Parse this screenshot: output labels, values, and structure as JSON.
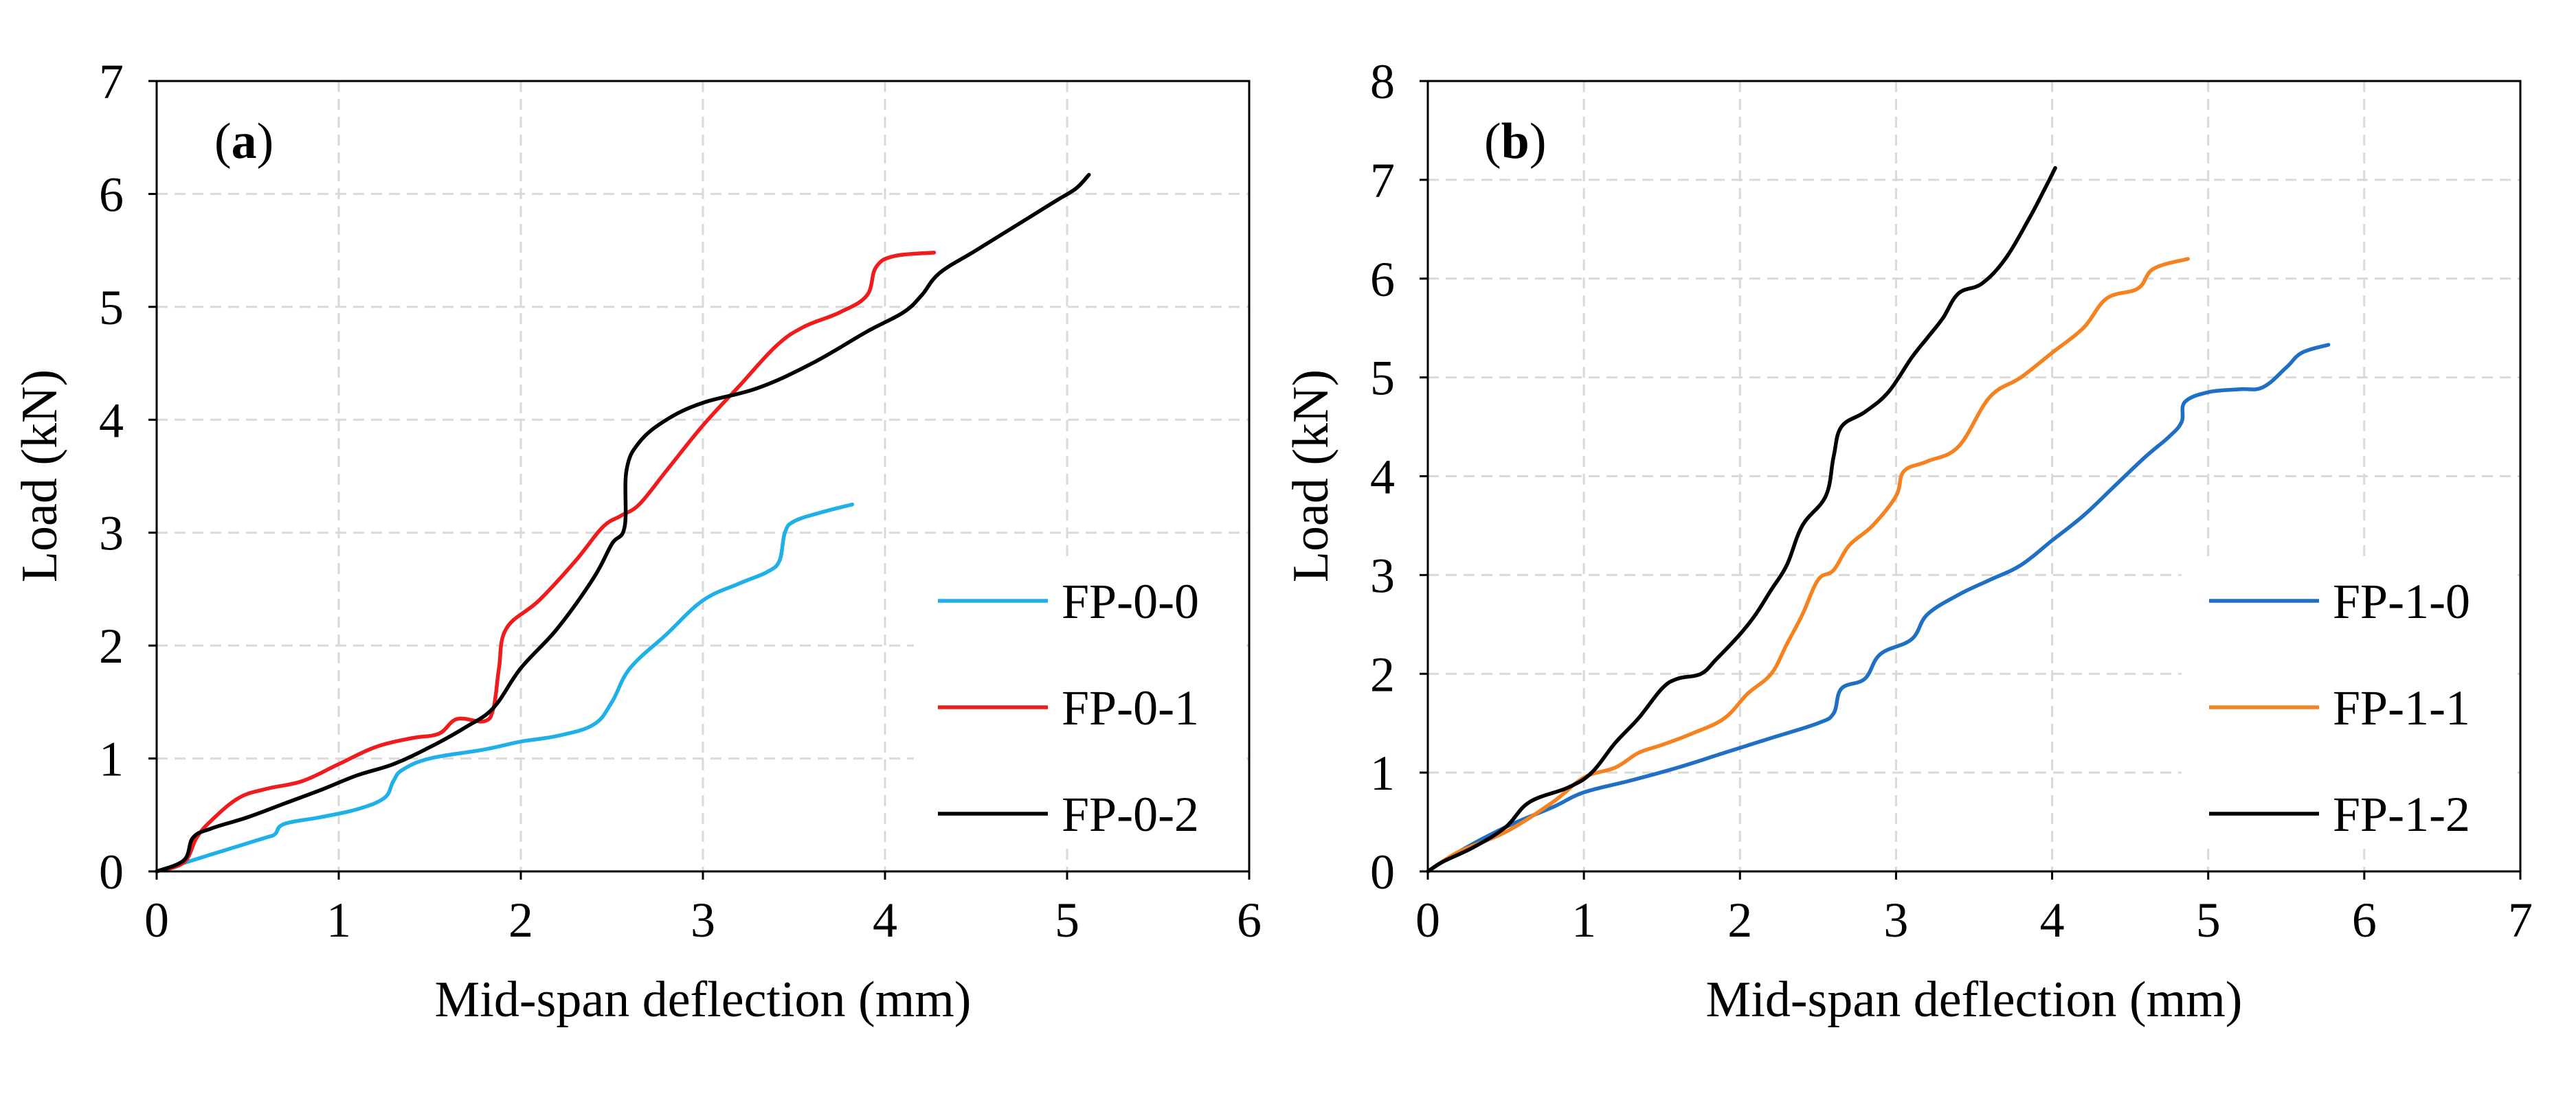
{
  "chart_data": [
    {
      "type": "line",
      "panel_label_letter": "a",
      "xlabel": "Mid-span deflection (mm)",
      "ylabel": "Load (kN)",
      "xlim": [
        0,
        6
      ],
      "ylim": [
        0,
        7
      ],
      "xticks": [
        "0",
        "1",
        "2",
        "3",
        "4",
        "5",
        "6"
      ],
      "yticks": [
        "0",
        "1",
        "2",
        "3",
        "4",
        "5",
        "6",
        "7"
      ],
      "grid": true,
      "legend_position": "lower-right",
      "series": [
        {
          "name": "FP-0-0",
          "color": "#1fb0e8",
          "points": [
            [
              0,
              0
            ],
            [
              0.2,
              0.1
            ],
            [
              0.4,
              0.2
            ],
            [
              0.6,
              0.3
            ],
            [
              0.65,
              0.33
            ],
            [
              0.7,
              0.42
            ],
            [
              0.9,
              0.48
            ],
            [
              1.1,
              0.55
            ],
            [
              1.25,
              0.65
            ],
            [
              1.3,
              0.8
            ],
            [
              1.35,
              0.9
            ],
            [
              1.5,
              1.0
            ],
            [
              1.8,
              1.08
            ],
            [
              2.0,
              1.15
            ],
            [
              2.2,
              1.2
            ],
            [
              2.4,
              1.3
            ],
            [
              2.5,
              1.5
            ],
            [
              2.6,
              1.8
            ],
            [
              2.8,
              2.1
            ],
            [
              3.0,
              2.4
            ],
            [
              3.2,
              2.55
            ],
            [
              3.35,
              2.65
            ],
            [
              3.42,
              2.75
            ],
            [
              3.45,
              3.0
            ],
            [
              3.5,
              3.1
            ],
            [
              3.65,
              3.18
            ],
            [
              3.82,
              3.25
            ]
          ]
        },
        {
          "name": "FP-0-1",
          "color": "#ee1c1c",
          "points": [
            [
              0,
              0
            ],
            [
              0.15,
              0.08
            ],
            [
              0.22,
              0.3
            ],
            [
              0.3,
              0.45
            ],
            [
              0.45,
              0.65
            ],
            [
              0.6,
              0.73
            ],
            [
              0.8,
              0.8
            ],
            [
              1.0,
              0.95
            ],
            [
              1.2,
              1.1
            ],
            [
              1.4,
              1.18
            ],
            [
              1.55,
              1.22
            ],
            [
              1.65,
              1.35
            ],
            [
              1.8,
              1.33
            ],
            [
              1.85,
              1.45
            ],
            [
              1.88,
              1.8
            ],
            [
              1.92,
              2.15
            ],
            [
              2.1,
              2.4
            ],
            [
              2.3,
              2.75
            ],
            [
              2.45,
              3.05
            ],
            [
              2.55,
              3.15
            ],
            [
              2.65,
              3.25
            ],
            [
              2.8,
              3.55
            ],
            [
              3.0,
              3.95
            ],
            [
              3.2,
              4.3
            ],
            [
              3.4,
              4.65
            ],
            [
              3.55,
              4.82
            ],
            [
              3.75,
              4.95
            ],
            [
              3.9,
              5.1
            ],
            [
              3.95,
              5.35
            ],
            [
              4.05,
              5.45
            ],
            [
              4.27,
              5.48
            ]
          ]
        },
        {
          "name": "FP-0-2",
          "color": "#000000",
          "points": [
            [
              0,
              0
            ],
            [
              0.15,
              0.1
            ],
            [
              0.2,
              0.3
            ],
            [
              0.3,
              0.38
            ],
            [
              0.5,
              0.48
            ],
            [
              0.7,
              0.6
            ],
            [
              0.9,
              0.72
            ],
            [
              1.1,
              0.85
            ],
            [
              1.3,
              0.95
            ],
            [
              1.5,
              1.1
            ],
            [
              1.7,
              1.28
            ],
            [
              1.85,
              1.45
            ],
            [
              2.0,
              1.8
            ],
            [
              2.2,
              2.15
            ],
            [
              2.4,
              2.6
            ],
            [
              2.5,
              2.9
            ],
            [
              2.57,
              3.05
            ],
            [
              2.58,
              3.55
            ],
            [
              2.65,
              3.8
            ],
            [
              2.8,
              4.0
            ],
            [
              3.0,
              4.15
            ],
            [
              3.3,
              4.28
            ],
            [
              3.6,
              4.5
            ],
            [
              3.9,
              4.78
            ],
            [
              4.1,
              4.95
            ],
            [
              4.2,
              5.1
            ],
            [
              4.3,
              5.3
            ],
            [
              4.5,
              5.5
            ],
            [
              4.8,
              5.8
            ],
            [
              4.95,
              5.95
            ],
            [
              5.05,
              6.05
            ],
            [
              5.12,
              6.17
            ]
          ]
        }
      ]
    },
    {
      "type": "line",
      "panel_label_letter": "b",
      "xlabel": "Mid-span deflection (mm)",
      "ylabel": "Load (kN)",
      "xlim": [
        0,
        7
      ],
      "ylim": [
        0,
        8
      ],
      "xticks": [
        "0",
        "1",
        "2",
        "3",
        "4",
        "5",
        "6",
        "7"
      ],
      "yticks": [
        "0",
        "1",
        "2",
        "3",
        "4",
        "5",
        "6",
        "7",
        "8"
      ],
      "grid": true,
      "legend_position": "lower-right",
      "series": [
        {
          "name": "FP-1-0",
          "color": "#1f6fc5",
          "points": [
            [
              0,
              0
            ],
            [
              0.2,
              0.2
            ],
            [
              0.5,
              0.45
            ],
            [
              0.8,
              0.65
            ],
            [
              1.0,
              0.8
            ],
            [
              1.3,
              0.92
            ],
            [
              1.6,
              1.05
            ],
            [
              1.9,
              1.2
            ],
            [
              2.2,
              1.35
            ],
            [
              2.5,
              1.5
            ],
            [
              2.6,
              1.6
            ],
            [
              2.65,
              1.85
            ],
            [
              2.8,
              1.95
            ],
            [
              2.9,
              2.2
            ],
            [
              3.1,
              2.35
            ],
            [
              3.2,
              2.6
            ],
            [
              3.4,
              2.8
            ],
            [
              3.6,
              2.95
            ],
            [
              3.8,
              3.1
            ],
            [
              4.0,
              3.35
            ],
            [
              4.2,
              3.6
            ],
            [
              4.4,
              3.9
            ],
            [
              4.6,
              4.2
            ],
            [
              4.75,
              4.4
            ],
            [
              4.83,
              4.55
            ],
            [
              4.85,
              4.75
            ],
            [
              5.0,
              4.85
            ],
            [
              5.2,
              4.88
            ],
            [
              5.35,
              4.9
            ],
            [
              5.5,
              5.1
            ],
            [
              5.6,
              5.25
            ],
            [
              5.77,
              5.33
            ]
          ]
        },
        {
          "name": "FP-1-1",
          "color": "#f58220",
          "points": [
            [
              0,
              0
            ],
            [
              0.2,
              0.2
            ],
            [
              0.5,
              0.4
            ],
            [
              0.8,
              0.7
            ],
            [
              1.0,
              0.95
            ],
            [
              1.2,
              1.05
            ],
            [
              1.35,
              1.2
            ],
            [
              1.5,
              1.28
            ],
            [
              1.7,
              1.4
            ],
            [
              1.9,
              1.55
            ],
            [
              2.05,
              1.8
            ],
            [
              2.2,
              2.0
            ],
            [
              2.3,
              2.3
            ],
            [
              2.4,
              2.6
            ],
            [
              2.5,
              2.95
            ],
            [
              2.6,
              3.05
            ],
            [
              2.7,
              3.3
            ],
            [
              2.85,
              3.5
            ],
            [
              3.0,
              3.8
            ],
            [
              3.05,
              4.05
            ],
            [
              3.2,
              4.15
            ],
            [
              3.4,
              4.3
            ],
            [
              3.6,
              4.8
            ],
            [
              3.8,
              5.0
            ],
            [
              4.0,
              5.25
            ],
            [
              4.2,
              5.5
            ],
            [
              4.35,
              5.8
            ],
            [
              4.55,
              5.9
            ],
            [
              4.65,
              6.1
            ],
            [
              4.87,
              6.2
            ]
          ]
        },
        {
          "name": "FP-1-2",
          "color": "#000000",
          "points": [
            [
              0,
              0
            ],
            [
              0.1,
              0.1
            ],
            [
              0.3,
              0.25
            ],
            [
              0.5,
              0.45
            ],
            [
              0.65,
              0.7
            ],
            [
              0.9,
              0.85
            ],
            [
              1.05,
              1.0
            ],
            [
              1.2,
              1.3
            ],
            [
              1.35,
              1.55
            ],
            [
              1.5,
              1.85
            ],
            [
              1.6,
              1.95
            ],
            [
              1.75,
              2.0
            ],
            [
              1.85,
              2.15
            ],
            [
              2.0,
              2.4
            ],
            [
              2.1,
              2.6
            ],
            [
              2.2,
              2.85
            ],
            [
              2.3,
              3.1
            ],
            [
              2.4,
              3.5
            ],
            [
              2.55,
              3.8
            ],
            [
              2.6,
              4.2
            ],
            [
              2.65,
              4.5
            ],
            [
              2.8,
              4.65
            ],
            [
              2.95,
              4.85
            ],
            [
              3.1,
              5.2
            ],
            [
              3.2,
              5.4
            ],
            [
              3.3,
              5.6
            ],
            [
              3.4,
              5.85
            ],
            [
              3.55,
              5.95
            ],
            [
              3.7,
              6.2
            ],
            [
              3.85,
              6.6
            ],
            [
              3.95,
              6.9
            ],
            [
              4.02,
              7.12
            ]
          ]
        }
      ]
    }
  ]
}
